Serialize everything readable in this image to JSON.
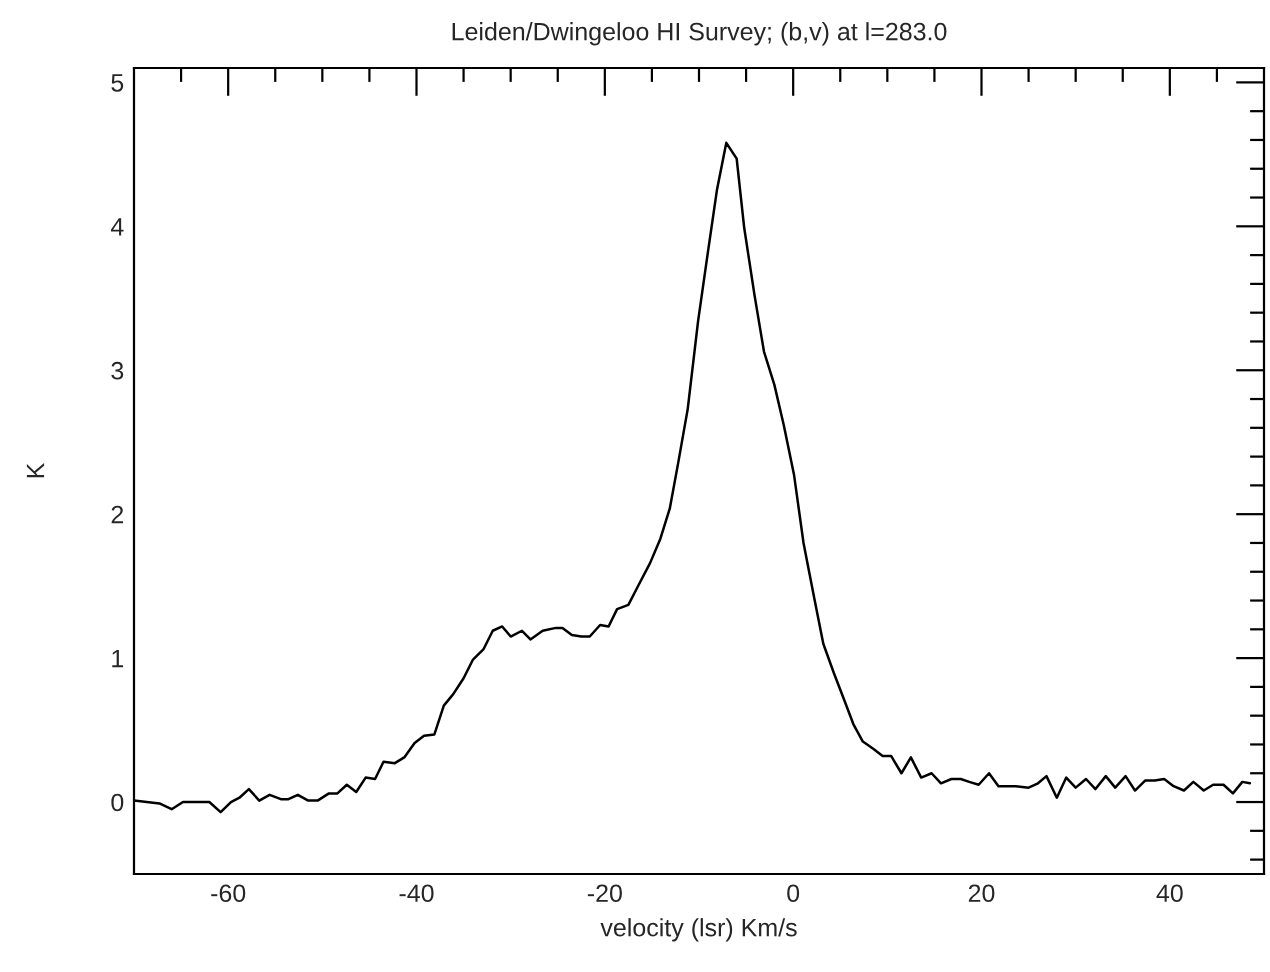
{
  "chart_data": {
    "type": "line",
    "title": "Leiden/Dwingeloo HI Survey; (b,v) at l=283.0",
    "xlabel": "velocity (lsr) Km/s",
    "ylabel": "K",
    "x": [
      -70,
      -67.3,
      -66,
      -64.8,
      -62,
      -60.8,
      -59.7,
      -58.8,
      -57.8,
      -56.7,
      -55.6,
      -54.4,
      -53.6,
      -52.6,
      -51.5,
      -50.5,
      -49.3,
      -48.4,
      -47.4,
      -46.4,
      -45.4,
      -44.4,
      -43.5,
      -42.3,
      -41.3,
      -40.2,
      -39.2,
      -38.1,
      -37.1,
      -36.1,
      -35.0,
      -34.0,
      -32.9,
      -31.9,
      -30.9,
      -30.0,
      -28.8,
      -27.9,
      -26.6,
      -25.2,
      -24.5,
      -23.5,
      -22.5,
      -21.6,
      -20.5,
      -19.6,
      -18.7,
      -17.5,
      -16.4,
      -15.2,
      -14.1,
      -13.1,
      -12.2,
      -11.2,
      -10.1,
      -9.1,
      -8.1,
      -7.1,
      -6.0,
      -5.2,
      -4.1,
      -3.1,
      -2.0,
      -1.0,
      0.1,
      1.1,
      2.2,
      3.2,
      4.3,
      5.3,
      6.4,
      7.4,
      8.5,
      9.5,
      10.4,
      11.5,
      12.5,
      13.6,
      14.7,
      15.7,
      16.8,
      17.8,
      18.7,
      19.7,
      20.8,
      21.8,
      23.6,
      25.0,
      26.0,
      26.9,
      28.0,
      29.0,
      30.0,
      31.1,
      32.1,
      33.2,
      34.2,
      35.3,
      36.3,
      37.4,
      38.4,
      39.4,
      40.4,
      41.5,
      42.5,
      43.6,
      44.6,
      45.7,
      46.7,
      47.7,
      48.5
    ],
    "series": [
      {
        "color": "#000000",
        "values": [
          0.01,
          -0.01,
          -0.05,
          0.0,
          0.0,
          -0.07,
          0.0,
          0.03,
          0.09,
          0.01,
          0.05,
          0.02,
          0.02,
          0.05,
          0.01,
          0.01,
          0.06,
          0.06,
          0.12,
          0.07,
          0.17,
          0.16,
          0.28,
          0.27,
          0.31,
          0.41,
          0.46,
          0.47,
          0.67,
          0.75,
          0.86,
          0.99,
          1.06,
          1.19,
          1.22,
          1.15,
          1.19,
          1.13,
          1.19,
          1.21,
          1.21,
          1.16,
          1.15,
          1.15,
          1.23,
          1.22,
          1.34,
          1.37,
          1.51,
          1.66,
          1.83,
          2.04,
          2.36,
          2.73,
          3.34,
          3.8,
          4.25,
          4.58,
          4.47,
          3.99,
          3.52,
          3.13,
          2.9,
          2.62,
          2.27,
          1.8,
          1.43,
          1.1,
          0.9,
          0.73,
          0.54,
          0.42,
          0.37,
          0.32,
          0.32,
          0.2,
          0.31,
          0.17,
          0.2,
          0.13,
          0.16,
          0.16,
          0.14,
          0.12,
          0.2,
          0.11,
          0.11,
          0.1,
          0.13,
          0.18,
          0.03,
          0.17,
          0.1,
          0.16,
          0.09,
          0.18,
          0.1,
          0.18,
          0.08,
          0.15,
          0.15,
          0.16,
          0.11,
          0.08,
          0.14,
          0.08,
          0.12,
          0.12,
          0.06,
          0.14,
          0.13
        ]
      }
    ],
    "xlim": [
      -70,
      50
    ],
    "ylim": [
      -0.5,
      5.1
    ],
    "xticks": [
      {
        "value": -65,
        "label": null
      },
      -60,
      {
        "value": -55,
        "label": null
      },
      {
        "value": -50,
        "label": null
      },
      {
        "value": -45,
        "label": null
      },
      -40,
      {
        "value": -35,
        "label": null
      },
      {
        "value": -30,
        "label": null
      },
      {
        "value": -25,
        "label": null
      },
      -20,
      {
        "value": -15,
        "label": null
      },
      {
        "value": -10,
        "label": null
      },
      {
        "value": -5,
        "label": null
      },
      0,
      {
        "value": 5,
        "label": null
      },
      {
        "value": 10,
        "label": null
      },
      {
        "value": 15,
        "label": null
      },
      20,
      {
        "value": 25,
        "label": null
      },
      {
        "value": 30,
        "label": null
      },
      {
        "value": 35,
        "label": null
      },
      40,
      {
        "value": 45,
        "label": null
      }
    ],
    "yticks": [
      {
        "value": -0.4,
        "label": null
      },
      {
        "value": -0.2,
        "label": null
      },
      0,
      {
        "value": 0.2,
        "label": null
      },
      {
        "value": 0.4,
        "label": null
      },
      {
        "value": 0.6,
        "label": null
      },
      {
        "value": 0.8,
        "label": null
      },
      1,
      {
        "value": 1.2,
        "label": null
      },
      {
        "value": 1.4,
        "label": null
      },
      {
        "value": 1.6,
        "label": null
      },
      {
        "value": 1.8,
        "label": null
      },
      2,
      {
        "value": 2.2,
        "label": null
      },
      {
        "value": 2.4,
        "label": null
      },
      {
        "value": 2.6,
        "label": null
      },
      {
        "value": 2.8,
        "label": null
      },
      3,
      {
        "value": 3.2,
        "label": null
      },
      {
        "value": 3.4,
        "label": null
      },
      {
        "value": 3.6,
        "label": null
      },
      {
        "value": 3.8,
        "label": null
      },
      4,
      {
        "value": 4.2,
        "label": null
      },
      {
        "value": 4.4,
        "label": null
      },
      {
        "value": 4.6,
        "label": null
      },
      {
        "value": 4.8,
        "label": null
      },
      5
    ],
    "grid": false,
    "legend": false,
    "line_style": "solid",
    "marker": "none"
  }
}
